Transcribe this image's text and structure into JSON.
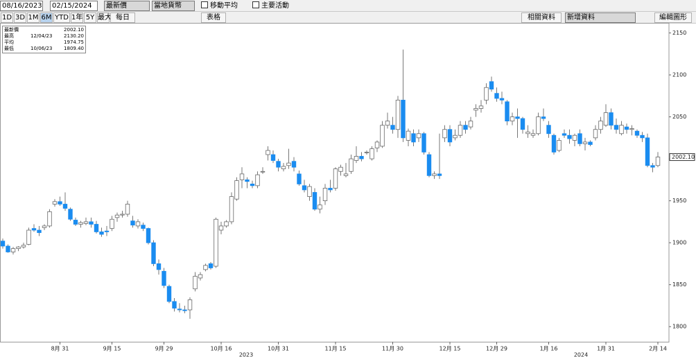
{
  "toolbar": {
    "start_date": "08/16/2023",
    "end_date": "02/15/2024",
    "price_field": "最新價",
    "currency": "當地貨幣",
    "moving_average": "移動平均",
    "key_events": "主要活動",
    "periods": [
      "1D",
      "3D",
      "1M",
      "6M",
      "YTD",
      "1年",
      "5Y",
      "最大"
    ],
    "active_period": "6M",
    "frequency": "每日",
    "table": "表格",
    "related": "相關資料",
    "add_data": "新增資料",
    "edit_chart": "編輯圖形"
  },
  "chart_data": {
    "type": "candlestick",
    "legend": [
      {
        "label": "最新價",
        "date": null,
        "value": "2002.10"
      },
      {
        "label": "最高",
        "date": "12/04/23",
        "value": "2130.20"
      },
      {
        "label": "平均",
        "date": null,
        "value": "1974.75"
      },
      {
        "label": "最低",
        "date": "10/06/23",
        "value": "1809.40"
      }
    ],
    "last_label": "2002.10",
    "year_labels": [
      "2023",
      "2024"
    ],
    "up_color": "#ffffff",
    "down_color": "#1a8cf0",
    "ylim": [
      1782,
      2162
    ],
    "yticks": [
      1800,
      1850,
      1900,
      1950,
      2000,
      2050,
      2100,
      2150
    ],
    "categories": [
      null,
      null,
      null,
      null,
      null,
      null,
      null,
      null,
      null,
      null,
      null,
      "8月 31",
      null,
      null,
      null,
      null,
      null,
      null,
      null,
      null,
      null,
      "9月 15",
      null,
      null,
      null,
      null,
      null,
      null,
      null,
      null,
      null,
      "9月 29",
      null,
      null,
      null,
      null,
      null,
      null,
      null,
      null,
      null,
      null,
      "10月 16",
      null,
      null,
      null,
      null,
      null,
      null,
      null,
      null,
      null,
      null,
      "10月 31",
      null,
      null,
      null,
      null,
      null,
      null,
      null,
      null,
      null,
      null,
      "11月 15",
      null,
      null,
      null,
      null,
      null,
      null,
      null,
      null,
      null,
      null,
      "11月 30",
      null,
      null,
      null,
      null,
      null,
      null,
      null,
      null,
      null,
      null,
      "12月 15",
      null,
      null,
      null,
      null,
      null,
      null,
      null,
      null,
      "12月 29",
      null,
      null,
      null,
      null,
      null,
      null,
      null,
      null,
      null,
      "1月 16",
      null,
      null,
      null,
      null,
      null,
      null,
      null,
      null,
      null,
      null,
      "1月 31",
      null,
      null,
      null,
      null,
      null,
      null,
      null,
      null,
      null,
      "2月 14"
    ],
    "ohlc": [
      [
        1902,
        1905,
        1893,
        1896
      ],
      [
        1896,
        1898,
        1888,
        1889
      ],
      [
        1889,
        1895,
        1886,
        1893
      ],
      [
        1893,
        1896,
        1890,
        1895
      ],
      [
        1895,
        1900,
        1893,
        1897
      ],
      [
        1898,
        1918,
        1897,
        1915
      ],
      [
        1917,
        1922,
        1913,
        1915
      ],
      [
        1915,
        1920,
        1908,
        1912
      ],
      [
        1918,
        1922,
        1915,
        1920
      ],
      [
        1920,
        1940,
        1918,
        1937
      ],
      [
        1946,
        1952,
        1943,
        1949
      ],
      [
        1949,
        1955,
        1944,
        1946
      ],
      [
        1946,
        1960,
        1938,
        1941
      ],
      [
        1940,
        1942,
        1926,
        1928
      ],
      [
        1927,
        1930,
        1920,
        1922
      ],
      [
        1922,
        1926,
        1918,
        1924
      ],
      [
        1923,
        1930,
        1921,
        1925
      ],
      [
        1925,
        1930,
        1918,
        1922
      ],
      [
        1922,
        1926,
        1911,
        1913
      ],
      [
        1913,
        1918,
        1907,
        1910
      ],
      [
        1914,
        1920,
        1908,
        1913
      ],
      [
        1917,
        1932,
        1914,
        1928
      ],
      [
        1930,
        1936,
        1925,
        1933
      ],
      [
        1933,
        1938,
        1930,
        1934
      ],
      [
        1934,
        1950,
        1931,
        1946
      ],
      [
        1926,
        1932,
        1918,
        1921
      ],
      [
        1920,
        1928,
        1917,
        1925
      ],
      [
        1921,
        1924,
        1914,
        1917
      ],
      [
        1917,
        1918,
        1898,
        1900
      ],
      [
        1900,
        1903,
        1872,
        1875
      ],
      [
        1875,
        1880,
        1862,
        1868
      ],
      [
        1866,
        1870,
        1846,
        1849
      ],
      [
        1848,
        1850,
        1828,
        1830
      ],
      [
        1830,
        1834,
        1818,
        1822
      ],
      [
        1821,
        1828,
        1817,
        1820
      ],
      [
        1820,
        1825,
        1816,
        1819
      ],
      [
        1820,
        1835,
        1809.4,
        1832
      ],
      [
        1845,
        1865,
        1842,
        1860
      ],
      [
        1858,
        1865,
        1855,
        1862
      ],
      [
        1868,
        1875,
        1866,
        1873
      ],
      [
        1875,
        1877,
        1868,
        1870
      ],
      [
        1872,
        1930,
        1870,
        1928
      ],
      [
        1915,
        1925,
        1910,
        1920
      ],
      [
        1920,
        1927,
        1918,
        1925
      ],
      [
        1925,
        1960,
        1922,
        1955
      ],
      [
        1952,
        1978,
        1950,
        1974
      ],
      [
        1975,
        1990,
        1965,
        1982
      ],
      [
        1975,
        1978,
        1965,
        1973
      ],
      [
        1970,
        1974,
        1965,
        1968
      ],
      [
        1968,
        1985,
        1965,
        1981
      ],
      [
        1985,
        1990,
        1982,
        1985
      ],
      [
        2005,
        2015,
        1998,
        2010
      ],
      [
        2005,
        2010,
        1995,
        1998
      ],
      [
        1997,
        2000,
        1985,
        1990
      ],
      [
        1988,
        1995,
        1985,
        1991
      ],
      [
        1992,
        2012,
        1988,
        1995
      ],
      [
        1997,
        2002,
        1985,
        1990
      ],
      [
        1982,
        1986,
        1968,
        1970
      ],
      [
        1968,
        1975,
        1960,
        1963
      ],
      [
        1955,
        1970,
        1950,
        1967
      ],
      [
        1960,
        1965,
        1938,
        1940
      ],
      [
        1940,
        1955,
        1935,
        1945
      ],
      [
        1950,
        1970,
        1945,
        1965
      ],
      [
        1965,
        1975,
        1960,
        1963
      ],
      [
        1965,
        1990,
        1962,
        1988
      ],
      [
        1985,
        1993,
        1980,
        1990
      ],
      [
        1980,
        1995,
        1978,
        1982
      ],
      [
        1985,
        2005,
        1982,
        2000
      ],
      [
        1998,
        2015,
        1995,
        2003
      ],
      [
        2003,
        2008,
        1997,
        2000
      ],
      [
        2008,
        2010,
        2005,
        2008
      ],
      [
        2000,
        2015,
        1998,
        2012
      ],
      [
        2013,
        2022,
        2008,
        2020
      ],
      [
        2015,
        2045,
        2013,
        2040
      ],
      [
        2040,
        2055,
        2036,
        2045
      ],
      [
        2040,
        2050,
        2030,
        2035
      ],
      [
        2035,
        2075,
        2025,
        2070
      ],
      [
        2070,
        2130.2,
        2020,
        2025
      ],
      [
        2022,
        2036,
        2015,
        2033
      ],
      [
        2030,
        2035,
        2015,
        2020
      ],
      [
        2025,
        2035,
        2020,
        2030
      ],
      [
        2030,
        2032,
        2005,
        2008
      ],
      [
        2005,
        2008,
        1978,
        1980
      ],
      [
        1980,
        1985,
        1976,
        1982
      ],
      [
        1982,
        2030,
        1976,
        1980
      ],
      [
        2025,
        2040,
        2020,
        2035
      ],
      [
        2035,
        2040,
        2015,
        2020
      ],
      [
        2025,
        2035,
        2022,
        2028
      ],
      [
        2028,
        2045,
        2025,
        2040
      ],
      [
        2040,
        2045,
        2030,
        2035
      ],
      [
        2038,
        2050,
        2035,
        2045
      ],
      [
        2058,
        2065,
        2050,
        2060
      ],
      [
        2060,
        2070,
        2055,
        2063
      ],
      [
        2070,
        2090,
        2065,
        2085
      ],
      [
        2092,
        2098,
        2080,
        2083
      ],
      [
        2078,
        2085,
        2068,
        2072
      ],
      [
        2072,
        2080,
        2065,
        2070
      ],
      [
        2068,
        2070,
        2040,
        2045
      ],
      [
        2045,
        2055,
        2040,
        2050
      ],
      [
        2050,
        2060,
        2025,
        2048
      ],
      [
        2048,
        2050,
        2030,
        2035
      ],
      [
        2030,
        2040,
        2025,
        2032
      ],
      [
        2028,
        2035,
        2025,
        2030
      ],
      [
        2030,
        2055,
        2028,
        2050
      ],
      [
        2050,
        2060,
        2045,
        2048
      ],
      [
        2040,
        2045,
        2025,
        2030
      ],
      [
        2028,
        2030,
        2005,
        2008
      ],
      [
        2010,
        2025,
        2008,
        2022
      ],
      [
        2030,
        2035,
        2025,
        2028
      ],
      [
        2028,
        2035,
        2018,
        2024
      ],
      [
        2022,
        2030,
        2015,
        2028
      ],
      [
        2030,
        2035,
        2015,
        2018
      ],
      [
        2018,
        2025,
        2010,
        2020
      ],
      [
        2020,
        2022,
        2015,
        2017
      ],
      [
        2025,
        2040,
        2022,
        2035
      ],
      [
        2035,
        2050,
        2030,
        2045
      ],
      [
        2040,
        2065,
        2038,
        2055
      ],
      [
        2055,
        2060,
        2035,
        2040
      ],
      [
        2040,
        2048,
        2030,
        2035
      ],
      [
        2030,
        2045,
        2028,
        2040
      ],
      [
        2038,
        2042,
        2030,
        2035
      ],
      [
        2035,
        2040,
        2028,
        2036
      ],
      [
        2033,
        2035,
        2025,
        2028
      ],
      [
        2028,
        2032,
        2020,
        2025
      ],
      [
        2025,
        2030,
        1990,
        1992
      ],
      [
        1992,
        1995,
        1984,
        1990
      ],
      [
        1992,
        2008,
        1990,
        2002.1
      ]
    ]
  }
}
